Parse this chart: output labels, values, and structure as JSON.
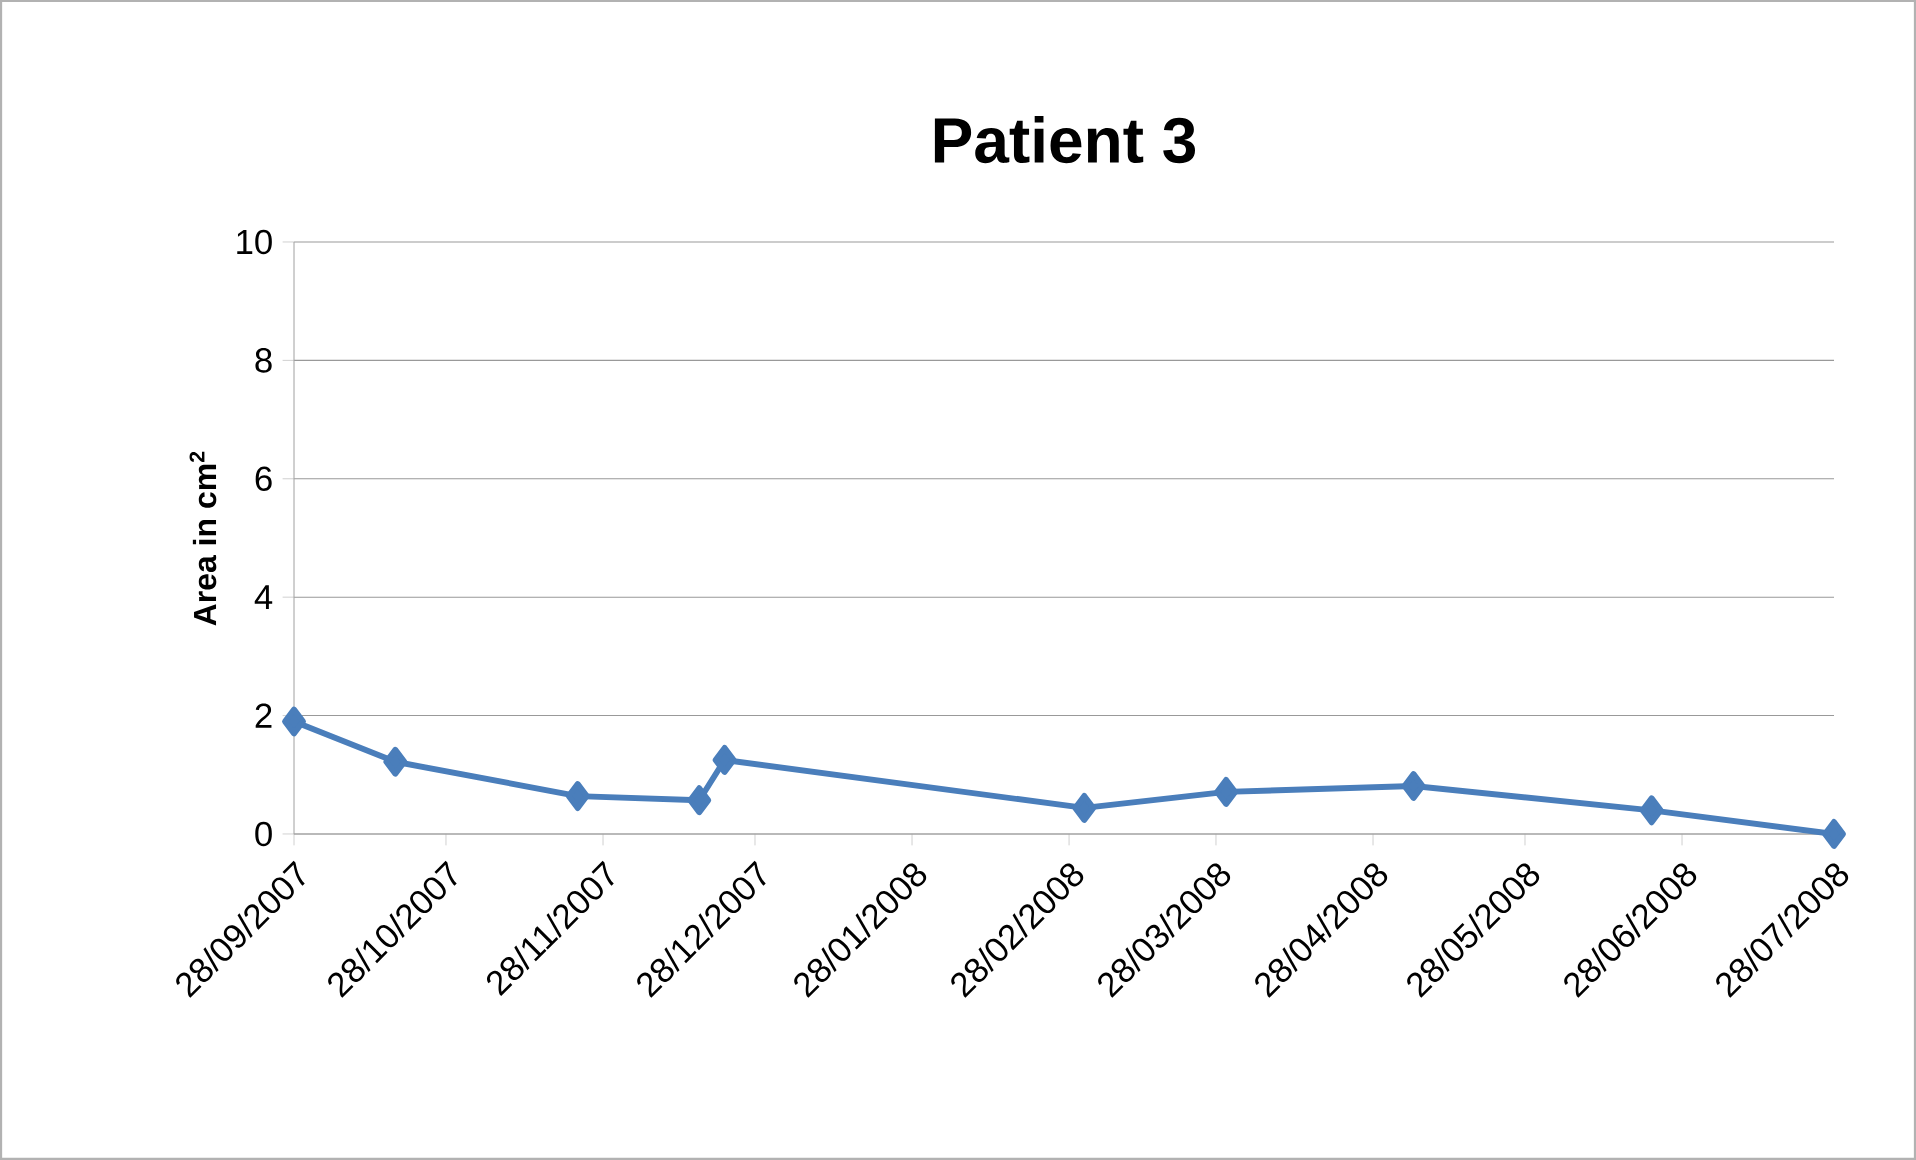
{
  "chart_data": {
    "type": "line",
    "title": "Patient 3",
    "ylabel": "Area in cm$^{2}$",
    "x": [
      "2007-09-28",
      "2007-10-18",
      "2007-11-23",
      "2007-12-17",
      "2007-12-22",
      "2008-03-02",
      "2008-03-30",
      "2008-05-06",
      "2008-06-22",
      "2008-07-28"
    ],
    "series": [
      {
        "color": "#4a7ebb",
        "values": [
          1.9,
          1.22,
          0.64,
          0.57,
          1.25,
          0.44,
          0.71,
          0.81,
          0.4,
          0
        ]
      }
    ],
    "xlim": [
      "2007-09-28",
      "2008-07-28"
    ],
    "xticks": [
      {
        "value": "2007-09-28",
        "label": "28/09/2007"
      },
      {
        "value": "2007-10-28",
        "label": "28/10/2007"
      },
      {
        "value": "2007-11-28",
        "label": "28/11/2007"
      },
      {
        "value": "2007-12-28",
        "label": "28/12/2007"
      },
      {
        "value": "2008-01-28",
        "label": "28/01/2008"
      },
      {
        "value": "2008-02-28",
        "label": "28/02/2008"
      },
      {
        "value": "2008-03-28",
        "label": "28/03/2008"
      },
      {
        "value": "2008-04-28",
        "label": "28/04/2008"
      },
      {
        "value": "2008-05-28",
        "label": "28/05/2008"
      },
      {
        "value": "2008-06-28",
        "label": "28/06/2008"
      },
      {
        "value": "2008-07-28",
        "label": "28/07/2008"
      }
    ],
    "ylim": [
      0,
      10
    ],
    "yticks": [
      0,
      2,
      4,
      6,
      8,
      10
    ],
    "grid": "y",
    "marker": "diamond",
    "line_style": "solid"
  }
}
